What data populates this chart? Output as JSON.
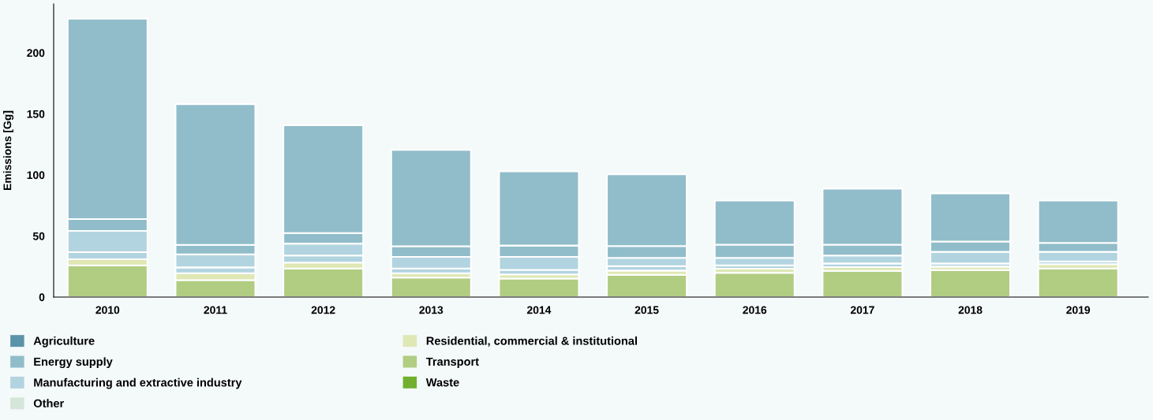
{
  "chart_data": {
    "type": "bar",
    "stacked": true,
    "ylabel": "Emissions [Gg]",
    "categories": [
      "2010",
      "2011",
      "2012",
      "2013",
      "2014",
      "2015",
      "2016",
      "2017",
      "2018",
      "2019"
    ],
    "ylim": [
      0,
      240
    ],
    "yticks": [
      0,
      50,
      100,
      150,
      200
    ],
    "grid": false,
    "legend": "bottom",
    "series": [
      {
        "name": "Transport",
        "color": "#b0cd82",
        "values": [
          26,
          13.9,
          23.4,
          16,
          15.2,
          18.2,
          19.9,
          21.4,
          22.1,
          23.4
        ]
      },
      {
        "name": "Residential, commercial & institutional",
        "color": "#dfe7b4",
        "values": [
          5,
          5.6,
          4.8,
          3.5,
          3.4,
          3.5,
          3.3,
          3.1,
          2.8,
          3.5
        ]
      },
      {
        "name": "Manufacturing and extractive industry",
        "color": "#b2d4e0",
        "values": [
          5.8,
          4.8,
          5.8,
          3.9,
          3.7,
          3.6,
          2.8,
          3,
          2.6,
          2.3
        ]
      },
      {
        "color": "#b2d4e0",
        "values": [
          17.4,
          10.7,
          9.8,
          9.5,
          10.6,
          6.8,
          6.1,
          6.5,
          9.5,
          7.8
        ]
      },
      {
        "name": "Energy supply",
        "color": "#91bdca",
        "values": [
          9.7,
          7.7,
          8.6,
          8.7,
          9.3,
          9.7,
          10.8,
          8.9,
          8.5,
          7.4
        ]
      },
      {
        "color": "#91bdca",
        "values": [
          164,
          115.3,
          88.3,
          78.9,
          60.8,
          58.7,
          36.1,
          45.9,
          39.4,
          34.6
        ]
      },
      {
        "name": "Agriculture",
        "color": "#5b93a9",
        "values": [
          0,
          0,
          0,
          0,
          0,
          0,
          0,
          0,
          0,
          0
        ]
      },
      {
        "name": "Other",
        "color": "#d5e5d9",
        "values": [
          0,
          0,
          0,
          0,
          0,
          0,
          0,
          0,
          0,
          0
        ]
      },
      {
        "name": "Waste",
        "color": "#70b02e",
        "values": [
          0,
          0,
          0,
          0,
          0,
          0,
          0,
          0,
          0,
          0
        ]
      }
    ]
  }
}
